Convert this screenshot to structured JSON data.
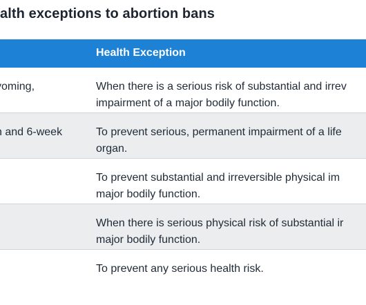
{
  "title": "alth exceptions to abortion bans",
  "table": {
    "headers": {
      "state": "",
      "exception": "Health Exception"
    },
    "rows": [
      {
        "state": "yoming,",
        "exception": [
          "When there is a serious risk of substantial and irrev",
          "impairment of a major bodily function."
        ]
      },
      {
        "state": "n and 6-week",
        "exception": [
          "To prevent serious, permanent impairment of a life",
          "organ."
        ]
      },
      {
        "state": "",
        "exception": [
          "To prevent substantial and irreversible physical im",
          "major bodily function."
        ]
      },
      {
        "state": "",
        "exception": [
          "When there is serious physical risk of substantial ir",
          "major bodily function."
        ]
      },
      {
        "state": "",
        "exception": [
          "To prevent any serious health risk."
        ]
      }
    ]
  },
  "colors": {
    "header_bg": "#1d82d6",
    "alt_row_bg": "#ebedef",
    "text": "#1f2a36"
  }
}
